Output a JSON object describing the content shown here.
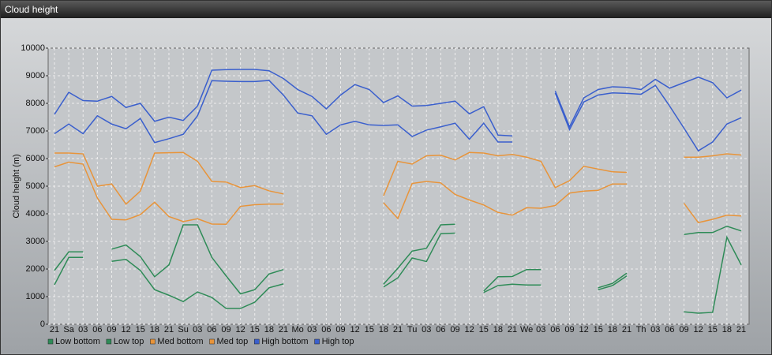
{
  "header": {
    "title": "Cloud height"
  },
  "chart_data": {
    "type": "line",
    "ylabel": "Cloud height (m)",
    "categories": [
      "21",
      "Sa",
      "03",
      "06",
      "09",
      "12",
      "15",
      "18",
      "21",
      "Su",
      "03",
      "06",
      "09",
      "12",
      "15",
      "18",
      "21",
      "Mo",
      "03",
      "06",
      "09",
      "12",
      "15",
      "18",
      "21",
      "Tu",
      "03",
      "06",
      "09",
      "12",
      "15",
      "18",
      "21",
      "We",
      "03",
      "06",
      "09",
      "12",
      "15",
      "18",
      "21",
      "Th",
      "03",
      "06",
      "09",
      "12",
      "15",
      "18",
      "21"
    ],
    "ylim": [
      0,
      10000
    ],
    "yticks": [
      0,
      1000,
      2000,
      3000,
      4000,
      5000,
      6000,
      7000,
      8000,
      9000,
      10000
    ],
    "grid": true,
    "series": [
      {
        "name": "Low bottom",
        "color": "#2e8b57",
        "values": [
          1430,
          2420,
          2420,
          null,
          2280,
          2350,
          1950,
          1250,
          1050,
          820,
          1170,
          970,
          570,
          570,
          800,
          1320,
          1460,
          null,
          null,
          null,
          null,
          null,
          null,
          1350,
          1680,
          2400,
          2270,
          3280,
          3300,
          null,
          1150,
          1400,
          1450,
          1420,
          1420,
          null,
          null,
          null,
          1250,
          1400,
          1750,
          null,
          null,
          null,
          450,
          400,
          430,
          3150,
          2150
        ]
      },
      {
        "name": "Low top",
        "color": "#2e8b57",
        "values": [
          1950,
          2620,
          2620,
          null,
          2720,
          2870,
          2450,
          1720,
          2150,
          3600,
          3600,
          2420,
          1750,
          1100,
          1250,
          1820,
          1980,
          null,
          null,
          null,
          null,
          null,
          null,
          1450,
          2030,
          2650,
          2750,
          3600,
          3620,
          null,
          1200,
          1720,
          1730,
          1980,
          1980,
          null,
          null,
          null,
          1320,
          1480,
          1850,
          null,
          null,
          null,
          3250,
          3320,
          3320,
          3550,
          3380
        ]
      },
      {
        "name": "Med bottom",
        "color": "#e8943a",
        "values": [
          5700,
          5870,
          5800,
          4570,
          3800,
          3780,
          3970,
          4420,
          3900,
          3720,
          3820,
          3630,
          3620,
          4270,
          4330,
          4350,
          4350,
          null,
          null,
          null,
          null,
          null,
          null,
          4400,
          3830,
          5100,
          5170,
          5120,
          4700,
          4500,
          4320,
          4050,
          3950,
          4220,
          4200,
          4300,
          4750,
          4820,
          4850,
          5080,
          5080,
          null,
          null,
          null,
          4380,
          3680,
          3800,
          3950,
          3920
        ]
      },
      {
        "name": "Med top",
        "color": "#e8943a",
        "values": [
          6200,
          6200,
          6170,
          5000,
          5080,
          4350,
          4820,
          6200,
          6210,
          6220,
          5900,
          5170,
          5150,
          4950,
          5020,
          4830,
          4720,
          null,
          null,
          null,
          null,
          null,
          null,
          4650,
          5900,
          5800,
          6100,
          6120,
          5950,
          6220,
          6200,
          6100,
          6150,
          6050,
          5900,
          4950,
          5200,
          5720,
          5620,
          5520,
          5500,
          null,
          null,
          null,
          6050,
          6050,
          6100,
          6170,
          6130
        ]
      },
      {
        "name": "High bottom",
        "color": "#3a5fcd",
        "values": [
          6900,
          7250,
          6900,
          7550,
          7250,
          7080,
          7450,
          6580,
          6720,
          6880,
          7550,
          8820,
          8800,
          8790,
          8790,
          8830,
          8300,
          7650,
          7550,
          6880,
          7220,
          7350,
          7220,
          7200,
          7220,
          6800,
          7030,
          7150,
          7280,
          6700,
          7280,
          6600,
          6600,
          null,
          null,
          8380,
          7050,
          8050,
          8300,
          8380,
          8360,
          8330,
          8650,
          7900,
          7100,
          6280,
          6600,
          7250,
          7480
        ]
      },
      {
        "name": "High top",
        "color": "#3a5fcd",
        "values": [
          7600,
          8400,
          8100,
          8080,
          8250,
          7850,
          8000,
          7350,
          7500,
          7380,
          7900,
          9200,
          9220,
          9230,
          9230,
          9180,
          8900,
          8500,
          8250,
          7800,
          8300,
          8680,
          8500,
          8030,
          8270,
          7900,
          7920,
          8000,
          8080,
          7620,
          7880,
          6850,
          6820,
          null,
          null,
          8450,
          7150,
          8200,
          8500,
          8600,
          8580,
          8500,
          8870,
          8550,
          8750,
          8950,
          8750,
          8200,
          8480
        ]
      }
    ]
  }
}
